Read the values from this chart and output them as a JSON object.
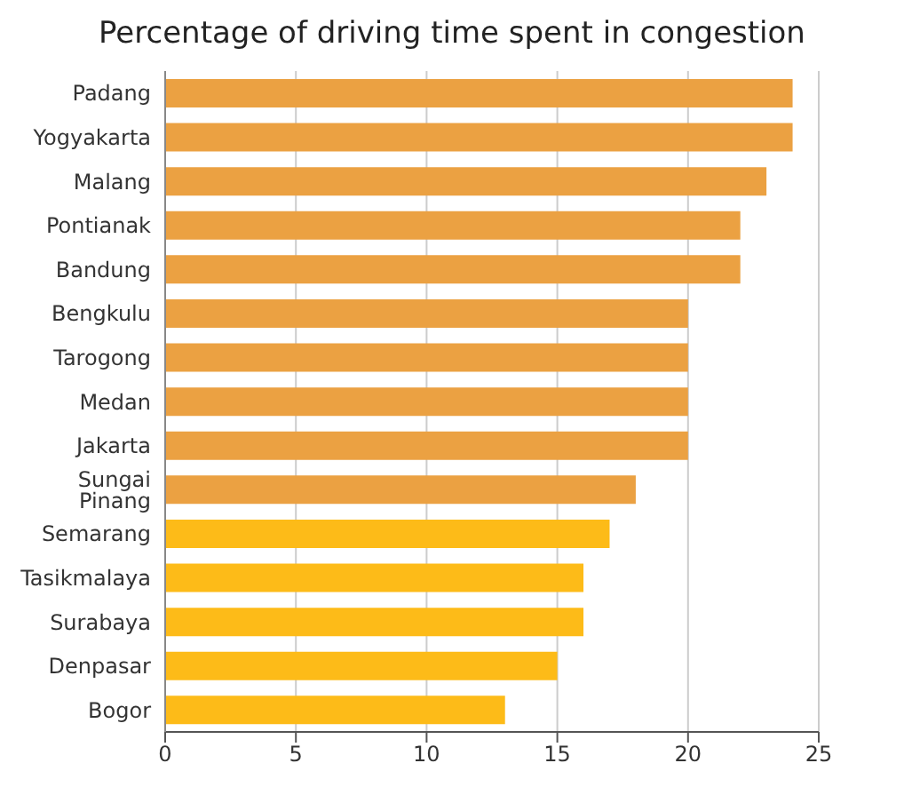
{
  "chart_data": {
    "type": "bar",
    "orientation": "horizontal",
    "title": "Percentage of driving time spent in congestion",
    "categories": [
      "Padang",
      "Yogyakarta",
      "Malang",
      "Pontianak",
      "Bandung",
      "Bengkulu",
      "Tarogong",
      "Medan",
      "Jakarta",
      "Sungai Pinang",
      "Semarang",
      "Tasikmalaya",
      "Surabaya",
      "Denpasar",
      "Bogor"
    ],
    "values": [
      24,
      24,
      23,
      22,
      22,
      20,
      20,
      20,
      20,
      18,
      17,
      16,
      16,
      15,
      13
    ],
    "colors": [
      "#eba142",
      "#eba142",
      "#eba142",
      "#eba142",
      "#eba142",
      "#eba142",
      "#eba142",
      "#eba142",
      "#eba142",
      "#eba142",
      "#fdbb18",
      "#fdbb18",
      "#fdbb18",
      "#fdbb18",
      "#fdbb18"
    ],
    "xlim": [
      0,
      25
    ],
    "xticks": [
      0,
      5,
      10,
      15,
      20,
      25
    ],
    "grid": "x"
  }
}
